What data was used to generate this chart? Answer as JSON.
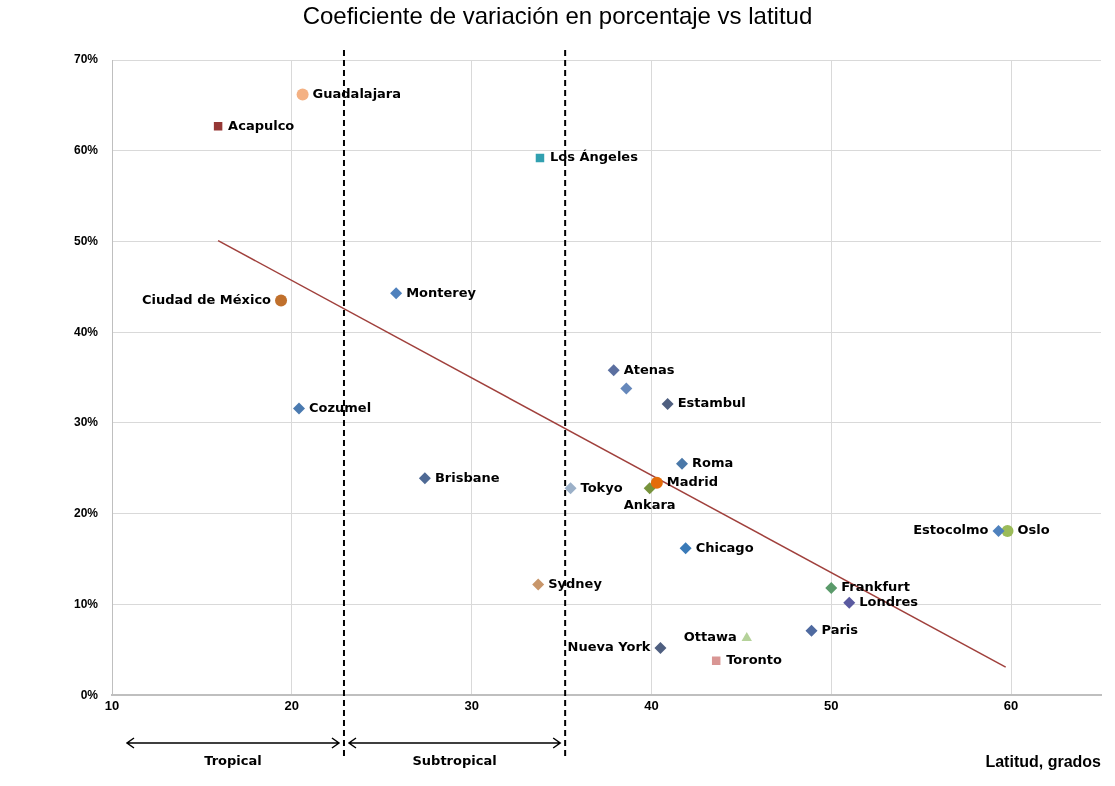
{
  "chart_data": {
    "type": "scatter",
    "title": "Coeficiente de variación en porcentaje vs latitud",
    "xlabel": "Latitud, grados",
    "xlim": [
      10,
      65
    ],
    "xticks": [
      10,
      20,
      30,
      40,
      50,
      60
    ],
    "ylim": [
      0,
      70
    ],
    "yticks": [
      {
        "value": 0,
        "label": "0%"
      },
      {
        "value": 10,
        "label": "10%"
      },
      {
        "value": 20,
        "label": "20%"
      },
      {
        "value": 30,
        "label": "30%"
      },
      {
        "value": 40,
        "label": "40%"
      },
      {
        "value": 50,
        "label": "50%"
      },
      {
        "value": 60,
        "label": "60%"
      },
      {
        "value": 70,
        "label": "70%"
      }
    ],
    "grid": true,
    "legend": false,
    "marker": "diamond",
    "series": [
      {
        "name": "Guadalajara",
        "color": "#f4b183",
        "marker": "circle",
        "x": [
          20.6
        ],
        "values": [
          66.2
        ]
      },
      {
        "name": "Acapulco",
        "color": "#953735",
        "marker": "square",
        "x": [
          15.9
        ],
        "values": [
          62.7
        ]
      },
      {
        "name": "Los Ángeles",
        "color": "#31a0b0",
        "marker": "square",
        "x": [
          33.8
        ],
        "values": [
          59.2
        ]
      },
      {
        "name": "Ciudad de México",
        "color": "#c0702c",
        "marker": "circle",
        "x": [
          19.4
        ],
        "values": [
          43.5
        ]
      },
      {
        "name": "Monterey",
        "color": "#4f81bd",
        "x": [
          25.8
        ],
        "values": [
          44.3
        ]
      },
      {
        "name": "Cozumel",
        "color": "#4a7ab0",
        "x": [
          20.4
        ],
        "values": [
          31.6
        ]
      },
      {
        "name": "Atenas",
        "color": "#5b6fa0",
        "x": [
          37.9
        ],
        "values": [
          35.8
        ]
      },
      {
        "color": "#6688bb",
        "x": [
          38.6
        ],
        "values": [
          33.8
        ]
      },
      {
        "name": "Estambul",
        "color": "#4f5f80",
        "x": [
          40.9
        ],
        "values": [
          32.1
        ]
      },
      {
        "name": "Brisbane",
        "color": "#4f6a95",
        "x": [
          27.4
        ],
        "values": [
          23.9
        ]
      },
      {
        "name": "Tokyo",
        "color": "#9bb0c8",
        "x": [
          35.5
        ],
        "values": [
          22.8
        ]
      },
      {
        "name": "Roma",
        "color": "#4a78a8",
        "x": [
          41.7
        ],
        "values": [
          25.5
        ]
      },
      {
        "name": "Madrid",
        "color": "#e46c0a",
        "marker": "circle",
        "x": [
          40.3
        ],
        "values": [
          23.4
        ]
      },
      {
        "name": "Ankara",
        "color": "#77933c",
        "x": [
          39.9
        ],
        "values": [
          22.8
        ]
      },
      {
        "name": "Estocolmo",
        "color": "#4f81bd",
        "x": [
          59.3
        ],
        "values": [
          18.1
        ]
      },
      {
        "name": "Oslo",
        "color": "#9bbb59",
        "marker": "circle",
        "x": [
          59.8
        ],
        "values": [
          18.1
        ]
      },
      {
        "name": "Chicago",
        "color": "#3a7ab8",
        "x": [
          41.9
        ],
        "values": [
          16.2
        ]
      },
      {
        "name": "Sydney",
        "color": "#c8966a",
        "x": [
          33.7
        ],
        "values": [
          12.2
        ]
      },
      {
        "name": "Frankfurt",
        "color": "#5a9a6a",
        "x": [
          50.0
        ],
        "values": [
          11.8
        ]
      },
      {
        "name": "Londres",
        "color": "#5a5aa0",
        "x": [
          51.0
        ],
        "values": [
          10.2
        ]
      },
      {
        "name": "Paris",
        "color": "#4f6aa0",
        "x": [
          48.9
        ],
        "values": [
          7.1
        ]
      },
      {
        "name": "Ottawa",
        "color": "#b5d29a",
        "marker": "triangle",
        "x": [
          45.3
        ],
        "values": [
          6.3
        ]
      },
      {
        "name": "Nueva York",
        "color": "#4f5f80",
        "x": [
          40.5
        ],
        "values": [
          5.2
        ]
      },
      {
        "name": "Toronto",
        "color": "#d99694",
        "marker": "square",
        "x": [
          43.6
        ],
        "values": [
          3.8
        ]
      },
      {
        "type": "line",
        "color": "#a0403c",
        "marker": "none",
        "x": [
          15.9,
          59.7
        ],
        "values": [
          50.1,
          3.1
        ]
      }
    ],
    "ref_lines": [
      {
        "axis": "x",
        "value": 22.9,
        "color": "#000000",
        "line_style": "dashed"
      },
      {
        "axis": "x",
        "value": 35.2,
        "color": "#000000",
        "line_style": "dashed"
      }
    ],
    "annotations": [
      "Tropical",
      "Subtropical"
    ]
  }
}
